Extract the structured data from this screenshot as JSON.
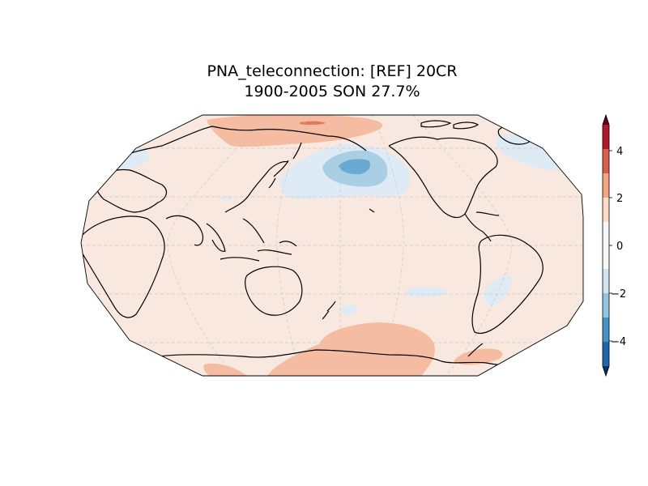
{
  "title": {
    "line1": "PNA_teleconnection: [REF] 20CR",
    "line2": "1900-2005 SON 27.7%"
  },
  "colorbar": {
    "tick_labels": [
      "4",
      "2",
      "0",
      "−2",
      "−4"
    ],
    "levels": [
      -5,
      -4,
      -3,
      -2,
      -1,
      1,
      2,
      3,
      4,
      5
    ],
    "colors": [
      "#2166ac",
      "#4393c3",
      "#92c5de",
      "#d1e5f0",
      "#f7f7f7",
      "#fddbc7",
      "#f4a582",
      "#d6604d",
      "#b2182b"
    ],
    "extend_low_color": "#053061",
    "extend_high_color": "#67001f"
  },
  "map": {
    "projection": "Robinson",
    "central_longitude": 180,
    "background_color": "#f9e8df",
    "positive_anomaly_color": "#f6bca1",
    "strong_positive_color": "#e07a62",
    "negative_anomaly_color": "#deeaf4",
    "mid_negative_color": "#a9cfe4",
    "strong_negative_color": "#6aaad2",
    "coastline_color": "#000000",
    "gridline_color": "#c8c8c8"
  }
}
